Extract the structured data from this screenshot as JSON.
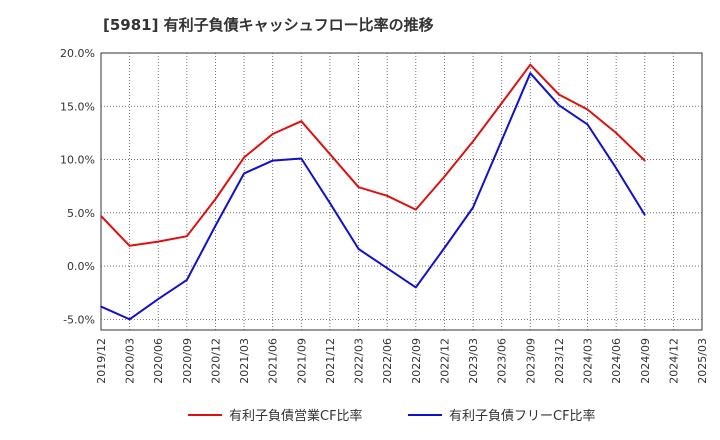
{
  "chart_data": {
    "type": "line",
    "title": "[5981]  有利子負債キャッシュフロー比率の推移",
    "xlabel": "",
    "ylabel": "",
    "x": [
      "2019/12",
      "2020/03",
      "2020/06",
      "2020/09",
      "2020/12",
      "2021/03",
      "2021/06",
      "2021/09",
      "2021/12",
      "2022/03",
      "2022/06",
      "2022/09",
      "2022/12",
      "2023/03",
      "2023/06",
      "2023/09",
      "2023/12",
      "2024/03",
      "2024/06",
      "2024/09",
      "2024/12",
      "2025/03"
    ],
    "ylim": [
      -6.0,
      20.0
    ],
    "yticks": [
      -5.0,
      0.0,
      5.0,
      10.0,
      15.0,
      20.0
    ],
    "ytick_labels": [
      "-5.0%",
      "0.0%",
      "5.0%",
      "10.0%",
      "15.0%",
      "20.0%"
    ],
    "grid": true,
    "legend_position": "bottom",
    "series": [
      {
        "name": "有利子負債営業CF比率",
        "color": "#dd1111",
        "values": [
          4.7,
          1.9,
          2.3,
          2.8,
          6.3,
          10.2,
          12.4,
          13.6,
          10.5,
          7.4,
          6.6,
          5.3,
          8.4,
          11.7,
          15.3,
          18.9,
          16.1,
          14.7,
          12.5,
          9.9,
          null,
          null
        ]
      },
      {
        "name": "有利子負債フリーCF比率",
        "color": "#1111cc",
        "values": [
          -3.8,
          -5.0,
          -3.1,
          -1.3,
          3.8,
          8.7,
          9.9,
          10.1,
          5.9,
          1.6,
          -0.2,
          -2.0,
          1.7,
          5.5,
          11.8,
          18.1,
          15.1,
          13.3,
          9.2,
          4.8,
          null,
          null
        ]
      }
    ]
  }
}
